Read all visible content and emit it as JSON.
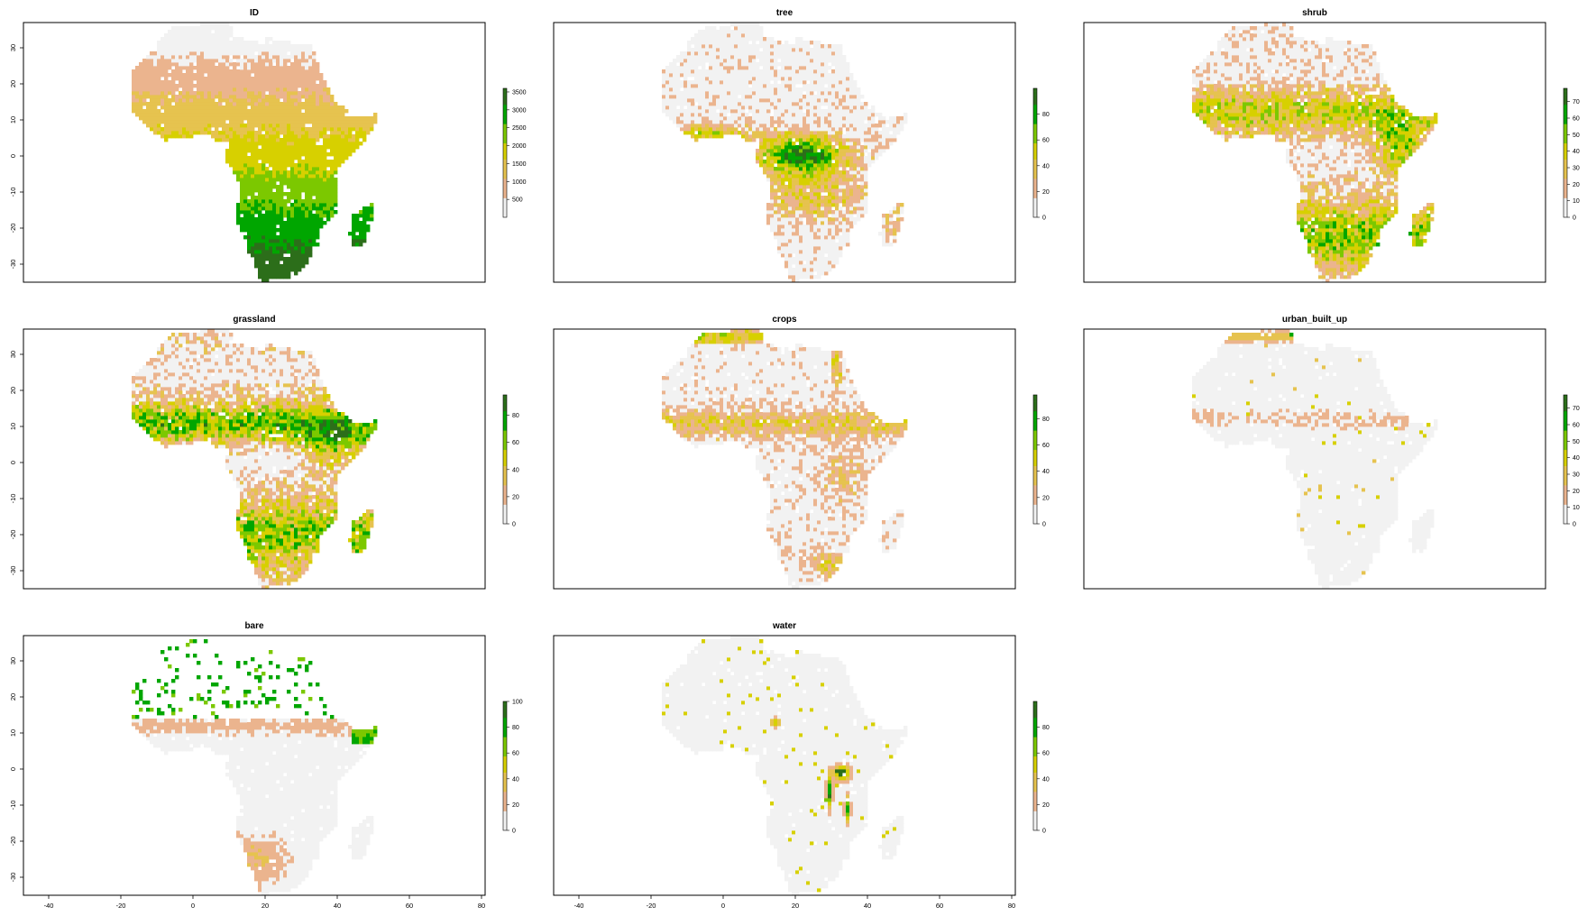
{
  "figure": {
    "panels": [
      {
        "key": "id",
        "title": "ID",
        "legend_ticks": [
          "500",
          "1000",
          "1500",
          "2000",
          "2500",
          "3000",
          "3500"
        ],
        "legend_range": [
          1,
          3600
        ]
      },
      {
        "key": "tree",
        "title": "tree",
        "legend_ticks": [
          "0",
          "20",
          "40",
          "60",
          "80"
        ],
        "legend_range": [
          0,
          100
        ]
      },
      {
        "key": "shrub",
        "title": "shrub",
        "legend_ticks": [
          "0",
          "10",
          "20",
          "30",
          "40",
          "50",
          "60",
          "70"
        ],
        "legend_range": [
          0,
          78
        ]
      },
      {
        "key": "grassland",
        "title": "grassland",
        "legend_ticks": [
          "0",
          "20",
          "40",
          "60",
          "80"
        ],
        "legend_range": [
          0,
          95
        ]
      },
      {
        "key": "crops",
        "title": "crops",
        "legend_ticks": [
          "0",
          "20",
          "40",
          "60",
          "80"
        ],
        "legend_range": [
          0,
          98
        ]
      },
      {
        "key": "urban",
        "title": "urban_built_up",
        "legend_ticks": [
          "0",
          "10",
          "20",
          "30",
          "40",
          "50",
          "60",
          "70"
        ],
        "legend_range": [
          0,
          78
        ]
      },
      {
        "key": "bare",
        "title": "bare",
        "legend_ticks": [
          "0",
          "20",
          "40",
          "60",
          "80",
          "100"
        ],
        "legend_range": [
          0,
          100
        ]
      },
      {
        "key": "water",
        "title": "water",
        "legend_ticks": [
          "0",
          "20",
          "40",
          "60",
          "80"
        ],
        "legend_range": [
          0,
          100
        ]
      }
    ],
    "x_ticks": [
      "-40",
      "-20",
      "0",
      "20",
      "40",
      "60",
      "80"
    ],
    "y_ticks": [
      "30",
      "20",
      "10",
      "0",
      "-10",
      "-20",
      "-30"
    ],
    "xlim": [
      -47,
      81
    ],
    "ylim": [
      -35,
      37
    ],
    "palette": [
      "#F2F2F2",
      "#EBB48E",
      "#E6C34F",
      "#D7D000",
      "#7CC800",
      "#00A600",
      "#2C6E1A"
    ]
  }
}
